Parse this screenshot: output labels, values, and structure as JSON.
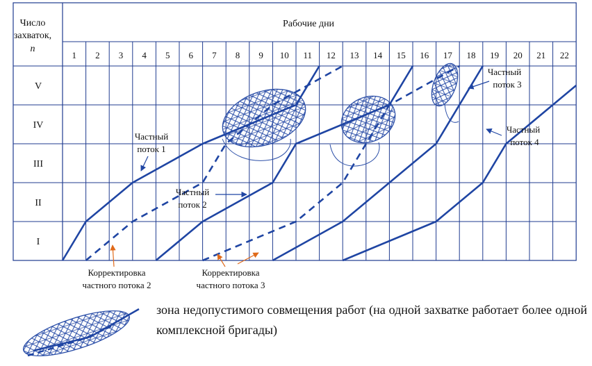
{
  "header": {
    "rows_label_line1": "Число",
    "rows_label_line2": "захваток,",
    "rows_label_line3": "n",
    "days_title": "Рабочие дни"
  },
  "rows": [
    "I",
    "II",
    "III",
    "IV",
    "V"
  ],
  "days": [
    "1",
    "2",
    "3",
    "4",
    "5",
    "6",
    "7",
    "8",
    "9",
    "10",
    "11",
    "12",
    "13",
    "14",
    "15",
    "16",
    "17",
    "18",
    "19",
    "20",
    "21",
    "22"
  ],
  "labels": {
    "flow1_line1": "Частный",
    "flow1_line2": "поток 1",
    "flow2_line1": "Частный",
    "flow2_line2": "поток 2",
    "flow3_line1": "Частный",
    "flow3_line2": "поток 3",
    "flow4_line1": "Частный",
    "flow4_line2": "поток 4",
    "corr2_line1": "Корректировка",
    "corr2_line2": "частного потока 2",
    "corr3_line1": "Корректировка",
    "corr3_line2": "частного потока 3"
  },
  "legend": {
    "text": "зона недопустимого совмещения работ (на одной захватке работает более одной комплексной бригады)"
  },
  "colors": {
    "grid": "#1f3b8f",
    "flow": "#1f45a3",
    "arrow_orange": "#e06a1a",
    "hatch": "#2c4fa8"
  },
  "chart_data": {
    "type": "line",
    "xlabel": "Рабочие дни",
    "ylabel": "Число захваток, n",
    "x_range": [
      0,
      22
    ],
    "y_categories": [
      "I",
      "II",
      "III",
      "IV",
      "V"
    ],
    "series": [
      {
        "name": "Частный поток 1",
        "style": "solid",
        "points": [
          [
            0,
            0
          ],
          [
            1,
            1
          ],
          [
            3,
            2
          ],
          [
            6,
            3
          ],
          [
            10,
            4
          ],
          [
            11,
            5
          ]
        ]
      },
      {
        "name": "Частный поток 2",
        "style": "dashed",
        "points": [
          [
            1,
            0
          ],
          [
            3,
            1
          ],
          [
            6,
            2
          ],
          [
            7,
            3
          ],
          [
            9,
            4
          ],
          [
            12,
            5
          ]
        ]
      },
      {
        "name": "Частный поток 2",
        "style": "solid",
        "points": [
          [
            4,
            0
          ],
          [
            6,
            1
          ],
          [
            9,
            2
          ],
          [
            10,
            3
          ],
          [
            14,
            4
          ],
          [
            15,
            5
          ]
        ]
      },
      {
        "name": "Частный поток 3",
        "style": "dashed",
        "points": [
          [
            6,
            0
          ],
          [
            10,
            1
          ],
          [
            12,
            2
          ],
          [
            13,
            3
          ],
          [
            14,
            4
          ],
          [
            17,
            5
          ]
        ]
      },
      {
        "name": "Частный поток 3",
        "style": "solid",
        "points": [
          [
            9,
            0
          ],
          [
            12,
            1
          ],
          [
            14,
            2
          ],
          [
            16,
            3
          ],
          [
            17,
            4
          ],
          [
            18,
            5
          ]
        ]
      },
      {
        "name": "Частный поток 4",
        "style": "solid",
        "points": [
          [
            12,
            0
          ],
          [
            16,
            1
          ],
          [
            18,
            2
          ],
          [
            19,
            3
          ],
          [
            21,
            4
          ],
          [
            23,
            5
          ]
        ]
      }
    ]
  }
}
